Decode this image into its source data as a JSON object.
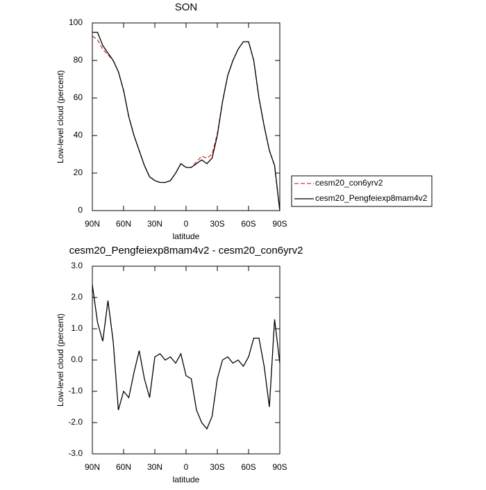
{
  "chart_data": [
    {
      "type": "line",
      "title": "SON",
      "xlabel": "latitude",
      "ylabel": "Low-level cloud (percent)",
      "x": [
        90,
        85,
        80,
        75,
        70,
        65,
        60,
        55,
        50,
        45,
        40,
        35,
        30,
        25,
        20,
        15,
        10,
        5,
        0,
        -5,
        -10,
        -15,
        -20,
        -25,
        -30,
        -35,
        -40,
        -45,
        -50,
        -55,
        -60,
        -65,
        -70,
        -75,
        -80,
        -85,
        -90
      ],
      "xlim": [
        90,
        -90
      ],
      "xticks": [
        {
          "value": 90,
          "label": "90N"
        },
        {
          "value": 60,
          "label": "60N"
        },
        {
          "value": 30,
          "label": "30N"
        },
        0,
        {
          "value": -30,
          "label": "30S"
        },
        {
          "value": -60,
          "label": "60S"
        },
        {
          "value": -90,
          "label": "90S"
        }
      ],
      "ylim": [
        0,
        100
      ],
      "yticks": [
        0,
        20,
        40,
        60,
        80,
        100
      ],
      "legend": "right",
      "series": [
        {
          "name": "cesm20_con6yrv2",
          "color": "#e0302a",
          "dash": true,
          "values": [
            93,
            91,
            86,
            83,
            80,
            74,
            64,
            50,
            40,
            32,
            24,
            18,
            16,
            15,
            15,
            16,
            20,
            25,
            23,
            23,
            26,
            29,
            28,
            30,
            41,
            58,
            72,
            80,
            86,
            90,
            90,
            80,
            60,
            45,
            32,
            24,
            0
          ]
        },
        {
          "name": "cesm20_Pengfeiexp8mam4v2",
          "color": "#000000",
          "dash": false,
          "values": [
            95,
            95,
            88,
            84,
            80,
            74,
            64,
            50,
            40,
            32,
            24,
            18,
            16,
            15,
            15,
            16,
            20,
            25,
            23,
            23,
            25,
            27,
            25,
            28,
            40,
            58,
            72,
            80,
            86,
            90,
            90,
            80,
            60,
            45,
            32,
            24,
            0
          ]
        }
      ]
    },
    {
      "type": "line",
      "title": "cesm20_Pengfeiexp8mam4v2 - cesm20_con6yrv2",
      "xlabel": "latitude",
      "ylabel": "Low-level cloud (percent)",
      "x": [
        90,
        85,
        80,
        75,
        70,
        65,
        60,
        55,
        50,
        45,
        40,
        35,
        30,
        25,
        20,
        15,
        10,
        5,
        0,
        -5,
        -10,
        -15,
        -20,
        -25,
        -30,
        -35,
        -40,
        -45,
        -50,
        -55,
        -60,
        -65,
        -70,
        -75,
        -80,
        -85,
        -90
      ],
      "xlim": [
        90,
        -90
      ],
      "xticks": [
        {
          "value": 90,
          "label": "90N"
        },
        {
          "value": 60,
          "label": "60N"
        },
        {
          "value": 30,
          "label": "30N"
        },
        0,
        {
          "value": -30,
          "label": "30S"
        },
        {
          "value": -60,
          "label": "60S"
        },
        {
          "value": -90,
          "label": "90S"
        }
      ],
      "ylim": [
        -3,
        3
      ],
      "yticks": [
        {
          "value": -3,
          "label": "-3.0"
        },
        {
          "value": -2,
          "label": "-2.0"
        },
        {
          "value": -1,
          "label": "-1.0"
        },
        {
          "value": 0,
          "label": "0.0"
        },
        {
          "value": 1,
          "label": "1.0"
        },
        {
          "value": 2,
          "label": "2.0"
        },
        {
          "value": 3,
          "label": "3.0"
        }
      ],
      "series": [
        {
          "color": "#000000",
          "dash": false,
          "values": [
            2.4,
            1.2,
            0.6,
            1.9,
            0.6,
            -1.6,
            -1.0,
            -1.2,
            -0.4,
            0.3,
            -0.6,
            -1.2,
            0.1,
            0.2,
            0.0,
            0.1,
            -0.1,
            0.2,
            -0.5,
            -0.6,
            -1.6,
            -2.0,
            -2.2,
            -1.8,
            -0.6,
            0.0,
            0.1,
            -0.1,
            0.0,
            -0.2,
            0.1,
            0.7,
            0.7,
            -0.2,
            -1.5,
            1.3,
            -0.1
          ]
        }
      ]
    }
  ]
}
